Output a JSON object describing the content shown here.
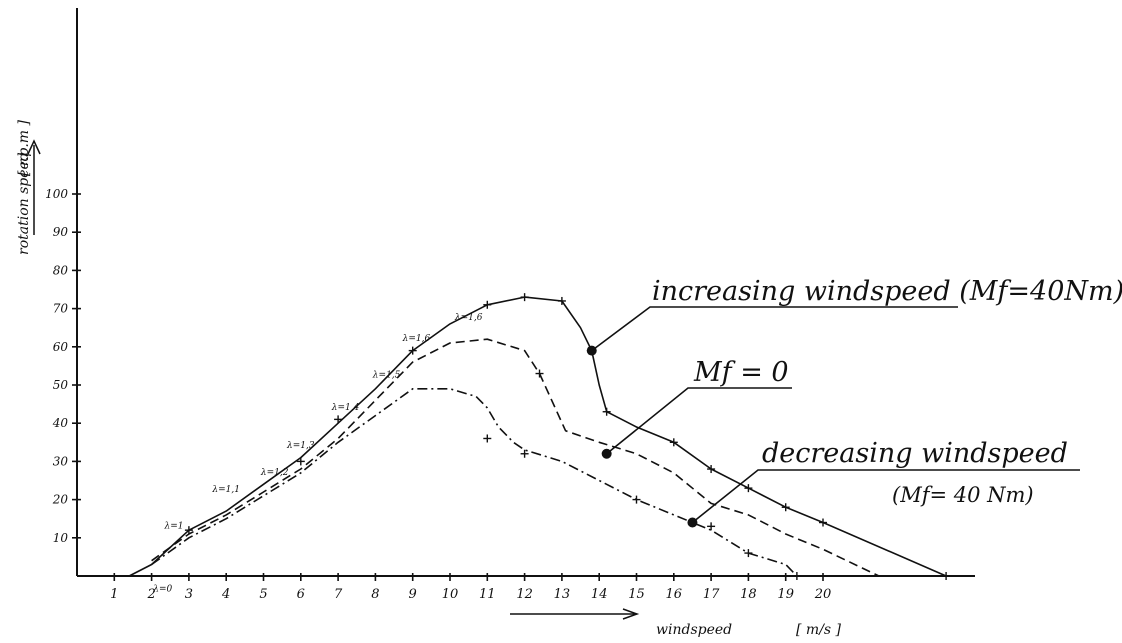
{
  "chart_data": {
    "type": "line",
    "xlabel": "windspeed",
    "xunit": "[ m/s ]",
    "ylabel": "rotation speed",
    "yunit": "[ r.p.m ]",
    "x_ticks": [
      "1",
      "2",
      "3",
      "4",
      "5",
      "6",
      "7",
      "8",
      "9",
      "10",
      "11",
      "12",
      "13",
      "14",
      "15",
      "16",
      "17",
      "18",
      "19",
      "20"
    ],
    "y_ticks": [
      "10",
      "20",
      "30",
      "40",
      "50",
      "60",
      "70",
      "80",
      "90",
      "100"
    ],
    "xlim": [
      0,
      23.5
    ],
    "ylim": [
      0,
      100
    ],
    "series": [
      {
        "label": "increasing windspeed (Mf=40Nm)",
        "style": "solid",
        "color": "#111111",
        "points": [
          [
            0.2,
            0
          ],
          [
            1.4,
            0
          ],
          [
            2,
            3
          ],
          [
            3,
            12
          ],
          [
            4,
            17
          ],
          [
            5,
            24
          ],
          [
            6,
            31
          ],
          [
            7,
            40
          ],
          [
            8,
            49
          ],
          [
            9,
            59
          ],
          [
            10,
            66
          ],
          [
            11,
            71
          ],
          [
            12,
            73
          ],
          [
            13,
            72
          ],
          [
            13.5,
            65
          ],
          [
            13.8,
            59
          ],
          [
            14.0,
            50
          ],
          [
            14.2,
            43
          ],
          [
            15,
            39
          ],
          [
            16,
            35
          ],
          [
            17,
            28
          ],
          [
            18,
            23
          ],
          [
            19,
            18
          ],
          [
            20,
            14
          ],
          [
            23.3,
            0
          ]
        ],
        "markers": [
          [
            3,
            12
          ],
          [
            7,
            41
          ],
          [
            9,
            59
          ],
          [
            11,
            71
          ],
          [
            12,
            73
          ],
          [
            13,
            72
          ],
          [
            14.2,
            43
          ],
          [
            16,
            35
          ],
          [
            17,
            28
          ],
          [
            18,
            23
          ],
          [
            19,
            18
          ],
          [
            20,
            14
          ],
          [
            23.3,
            0
          ]
        ]
      },
      {
        "label": "Mf = 0",
        "style": "dashed",
        "color": "#111111",
        "points": [
          [
            2,
            4
          ],
          [
            3,
            11
          ],
          [
            4,
            16
          ],
          [
            5,
            22
          ],
          [
            6,
            28
          ],
          [
            7,
            36
          ],
          [
            8,
            46
          ],
          [
            9,
            56
          ],
          [
            10,
            61
          ],
          [
            11,
            62
          ],
          [
            12,
            59
          ],
          [
            12.4,
            53
          ],
          [
            13.1,
            38
          ],
          [
            14,
            35
          ],
          [
            15,
            32
          ],
          [
            16,
            27
          ],
          [
            17,
            19
          ],
          [
            18,
            16
          ],
          [
            19,
            11
          ],
          [
            20,
            7
          ],
          [
            21.5,
            0
          ]
        ],
        "markers": [
          [
            12.4,
            53
          ]
        ]
      },
      {
        "label": "decreasing windspeed (Mf= 40 Nm)",
        "style": "dash-dot",
        "color": "#111111",
        "points": [
          [
            2,
            3
          ],
          [
            3,
            10
          ],
          [
            4,
            15
          ],
          [
            5,
            21
          ],
          [
            6,
            27
          ],
          [
            7,
            35
          ],
          [
            8,
            42
          ],
          [
            9,
            49
          ],
          [
            10,
            49
          ],
          [
            10.7,
            47
          ],
          [
            11,
            44
          ],
          [
            11.3,
            39
          ],
          [
            11.7,
            35
          ],
          [
            12,
            33
          ],
          [
            13,
            30
          ],
          [
            14,
            25
          ],
          [
            15,
            20
          ],
          [
            16,
            16
          ],
          [
            17,
            12
          ],
          [
            18,
            6
          ],
          [
            19,
            3
          ],
          [
            19.3,
            0
          ]
        ],
        "markers": [
          [
            6,
            30
          ],
          [
            11,
            36
          ],
          [
            12,
            32
          ],
          [
            15,
            20
          ],
          [
            17,
            13
          ],
          [
            18,
            6
          ],
          [
            19.3,
            0
          ]
        ]
      }
    ],
    "lambda_labels": [
      {
        "text": "λ=0",
        "x": 2.3,
        "y": -4
      },
      {
        "text": "λ=1",
        "x": 2.6,
        "y": 12.5
      },
      {
        "text": "λ=1,1",
        "x": 4.0,
        "y": 22
      },
      {
        "text": "λ=1,2",
        "x": 5.3,
        "y": 26.5
      },
      {
        "text": "λ=1,3",
        "x": 6.0,
        "y": 33.5
      },
      {
        "text": "λ=1,4",
        "x": 7.2,
        "y": 43.5
      },
      {
        "text": "λ=1,5",
        "x": 8.3,
        "y": 52
      },
      {
        "text": "λ=1,6",
        "x": 9.1,
        "y": 61.5
      },
      {
        "text": "λ=1,6",
        "x": 10.5,
        "y": 67
      }
    ],
    "annotations": [
      {
        "text": "increasing windspeed (Mf=40Nm)",
        "anchor": [
          13.8,
          59
        ]
      },
      {
        "text": "Mf = 0",
        "anchor": [
          14.2,
          32
        ]
      },
      {
        "text": "decreasing windspeed",
        "text2": "(Mf= 40 Nm)",
        "anchor": [
          16.5,
          14
        ]
      }
    ]
  }
}
